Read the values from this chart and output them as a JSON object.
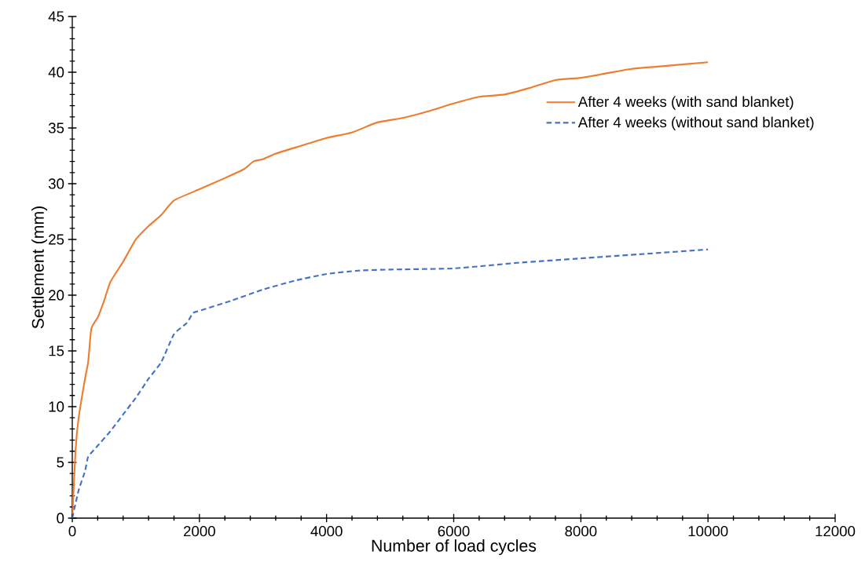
{
  "chart_data": {
    "type": "line",
    "xlabel": "Number of load cycles",
    "ylabel": "Settlement (mm)",
    "xlim": [
      0,
      12000
    ],
    "xticks": [
      0,
      2000,
      4000,
      6000,
      8000,
      10000,
      12000
    ],
    "ylim": [
      0,
      45
    ],
    "yticks": [
      0,
      5,
      10,
      15,
      20,
      25,
      30,
      35,
      40,
      45
    ],
    "legend": "top right",
    "grid": false,
    "marker": "none",
    "series": [
      {
        "name": "After 4 weeks (with sand blanket)",
        "color": "#ed7d31",
        "line_style": "solid",
        "x": [
          0,
          50,
          100,
          200,
          250,
          300,
          400,
          500,
          600,
          800,
          1000,
          1200,
          1400,
          1600,
          2000,
          2400,
          2700,
          2850,
          3000,
          3200,
          3600,
          4000,
          4400,
          4800,
          5200,
          5600,
          6000,
          6400,
          6800,
          7200,
          7600,
          8000,
          8400,
          8800,
          9200,
          10000
        ],
        "values": [
          0,
          6,
          9,
          12.5,
          14,
          17,
          18,
          19.5,
          21.2,
          23,
          25,
          26.2,
          27.2,
          28.5,
          29.5,
          30.5,
          31.3,
          32,
          32.2,
          32.7,
          33.4,
          34.1,
          34.6,
          35.5,
          35.9,
          36.5,
          37.2,
          37.8,
          38,
          38.6,
          39.3,
          39.5,
          39.9,
          40.3,
          40.5,
          40.9
        ]
      },
      {
        "name": "After 4 weeks (without sand blanket)",
        "color": "#4472c4",
        "line_style": "dashed",
        "x": [
          0,
          100,
          200,
          250,
          400,
          600,
          800,
          1000,
          1200,
          1400,
          1600,
          1800,
          1900,
          2000,
          2500,
          3000,
          3500,
          4000,
          4500,
          5000,
          6000,
          7000,
          8000,
          9000,
          10000
        ],
        "values": [
          0,
          2.5,
          4.2,
          5.5,
          6.5,
          7.8,
          9.3,
          10.8,
          12.5,
          14,
          16.5,
          17.5,
          18.4,
          18.6,
          19.5,
          20.5,
          21.3,
          21.9,
          22.2,
          22.3,
          22.4,
          22.9,
          23.3,
          23.7,
          24.1
        ]
      }
    ]
  }
}
